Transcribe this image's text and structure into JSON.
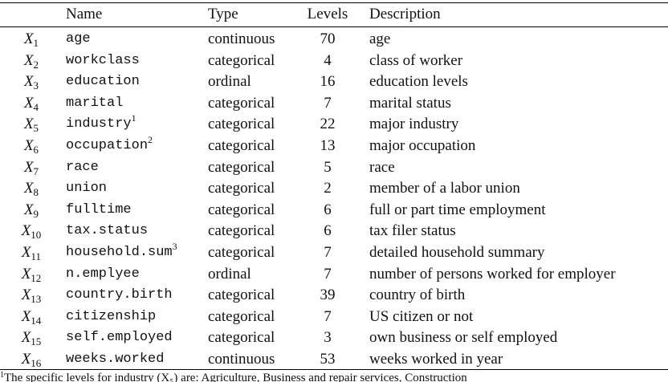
{
  "table": {
    "headers": {
      "var": "",
      "name": "Name",
      "type": "Type",
      "levels": "Levels",
      "description": "Description"
    },
    "rows": [
      {
        "var": "X",
        "sub": "1",
        "name": "age",
        "note": "",
        "type": "continuous",
        "levels": "70",
        "description": "age"
      },
      {
        "var": "X",
        "sub": "2",
        "name": "workclass",
        "note": "",
        "type": "categorical",
        "levels": "4",
        "description": "class of worker"
      },
      {
        "var": "X",
        "sub": "3",
        "name": "education",
        "note": "",
        "type": "ordinal",
        "levels": "16",
        "description": "education levels"
      },
      {
        "var": "X",
        "sub": "4",
        "name": "marital",
        "note": "",
        "type": "categorical",
        "levels": "7",
        "description": "marital status"
      },
      {
        "var": "X",
        "sub": "5",
        "name": "industry",
        "note": "1",
        "type": "categorical",
        "levels": "22",
        "description": "major industry"
      },
      {
        "var": "X",
        "sub": "6",
        "name": "occupation",
        "note": "2",
        "type": "categorical",
        "levels": "13",
        "description": "major occupation"
      },
      {
        "var": "X",
        "sub": "7",
        "name": "race",
        "note": "",
        "type": "categorical",
        "levels": "5",
        "description": "race"
      },
      {
        "var": "X",
        "sub": "8",
        "name": "union",
        "note": "",
        "type": "categorical",
        "levels": "2",
        "description": "member of a labor union"
      },
      {
        "var": "X",
        "sub": "9",
        "name": "fulltime",
        "note": "",
        "type": "categorical",
        "levels": "6",
        "description": "full or part time employment"
      },
      {
        "var": "X",
        "sub": "10",
        "name": "tax.status",
        "note": "",
        "type": "categorical",
        "levels": "6",
        "description": "tax filer status"
      },
      {
        "var": "X",
        "sub": "11",
        "name": "household.sum",
        "note": "3",
        "type": "categorical",
        "levels": "7",
        "description": "detailed household summary"
      },
      {
        "var": "X",
        "sub": "12",
        "name": "n.emplyee",
        "note": "",
        "type": "ordinal",
        "levels": "7",
        "description": "number of persons worked for employer"
      },
      {
        "var": "X",
        "sub": "13",
        "name": "country.birth",
        "note": "",
        "type": "categorical",
        "levels": "39",
        "description": "country of birth"
      },
      {
        "var": "X",
        "sub": "14",
        "name": "citizenship",
        "note": "",
        "type": "categorical",
        "levels": "7",
        "description": "US citizen or not"
      },
      {
        "var": "X",
        "sub": "15",
        "name": "self.employed",
        "note": "",
        "type": "categorical",
        "levels": "3",
        "description": "own business or self employed"
      },
      {
        "var": "X",
        "sub": "16",
        "name": "weeks.worked",
        "note": "",
        "type": "continuous",
        "levels": "53",
        "description": "weeks worked in year"
      }
    ]
  },
  "footnote": {
    "mark": "1",
    "text": "The specific levels for industry (X₅) are: Agriculture, Business and repair services, Construction"
  }
}
